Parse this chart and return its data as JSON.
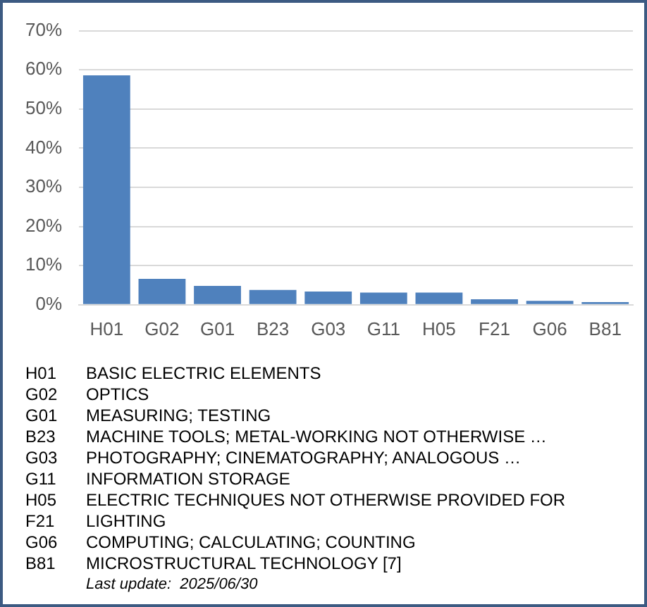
{
  "chart_data": {
    "type": "bar",
    "categories": [
      "H01",
      "G02",
      "G01",
      "B23",
      "G03",
      "G11",
      "H05",
      "F21",
      "G06",
      "B81"
    ],
    "values": [
      58.6,
      6.6,
      4.8,
      3.8,
      3.4,
      3.1,
      3.1,
      1.4,
      1.0,
      0.7
    ],
    "color": "#4f81bd",
    "ylim": [
      0,
      70
    ],
    "yticks": [
      {
        "value": 0,
        "label": "0%"
      },
      {
        "value": 10,
        "label": "10%"
      },
      {
        "value": 20,
        "label": "20%"
      },
      {
        "value": 30,
        "label": "30%"
      },
      {
        "value": 40,
        "label": "40%"
      },
      {
        "value": 50,
        "label": "50%"
      },
      {
        "value": 60,
        "label": "60%"
      },
      {
        "value": 70,
        "label": "70%"
      }
    ],
    "grid": "y",
    "annotations": [
      "BASIC ELECTRIC ELEMENTS",
      "OPTICS",
      "MEASURING; TESTING",
      "MACHINE TOOLS; METAL-WORKING NOT OTHERWISE …",
      "PHOTOGRAPHY; CINEMATOGRAPHY; ANALOGOUS …",
      "INFORMATION STORAGE",
      "ELECTRIC TECHNIQUES NOT OTHERWISE PROVIDED FOR",
      "LIGHTING",
      "COMPUTING; CALCULATING; COUNTING",
      "MICROSTRUCTURAL TECHNOLOGY [7]",
      "Last update:  2025/06/30"
    ]
  }
}
